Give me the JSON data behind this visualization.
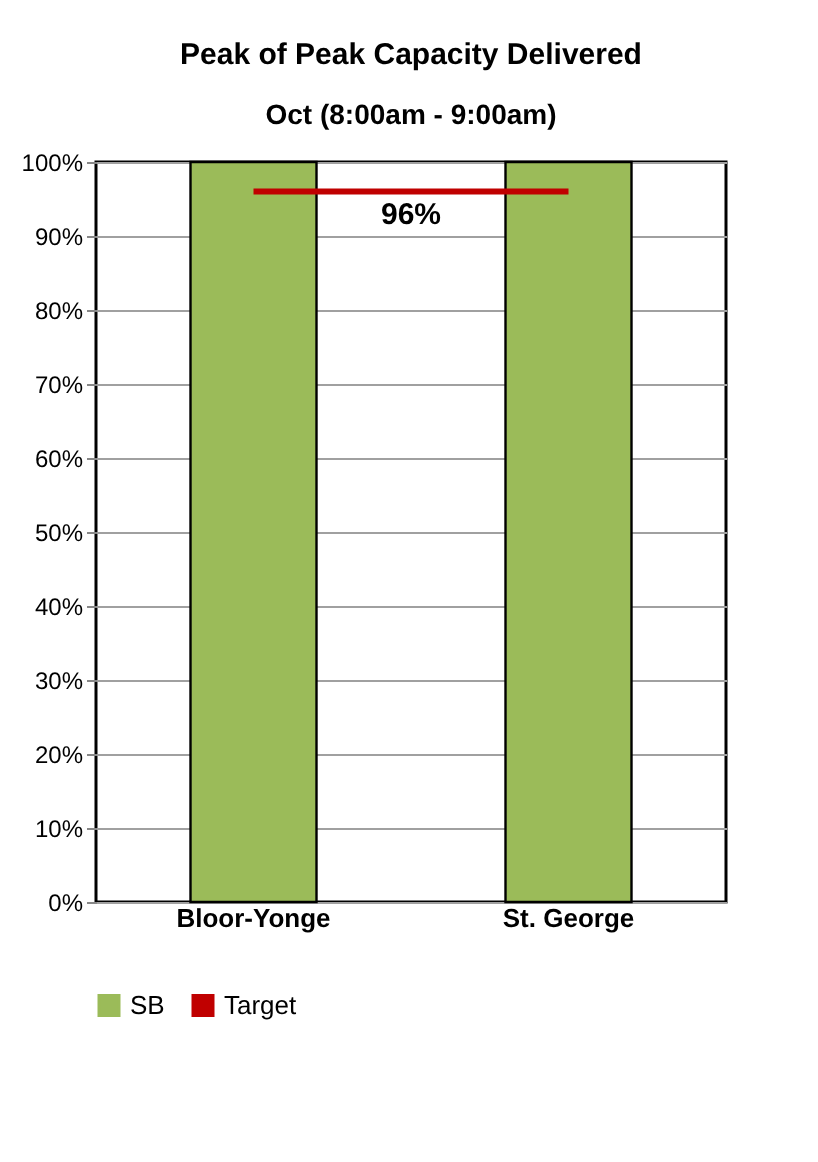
{
  "chart_data": {
    "type": "bar",
    "title": "Peak of Peak Capacity Delivered",
    "subtitle": "Oct  (8:00am - 9:00am)",
    "categories": [
      "Bloor-Yonge",
      "St. George"
    ],
    "series": [
      {
        "name": "SB",
        "color": "#9bbb59",
        "values": [
          100,
          100
        ]
      },
      {
        "name": "Target",
        "type": "line",
        "color": "#c00000",
        "values": [
          96,
          96
        ]
      }
    ],
    "annotations": [
      {
        "text": "96%",
        "y": 96
      }
    ],
    "ylim": [
      0,
      100
    ],
    "yticks": [
      {
        "value": 0,
        "label": "0%"
      },
      {
        "value": 10,
        "label": "10%"
      },
      {
        "value": 20,
        "label": "20%"
      },
      {
        "value": 30,
        "label": "30%"
      },
      {
        "value": 40,
        "label": "40%"
      },
      {
        "value": 50,
        "label": "50%"
      },
      {
        "value": 60,
        "label": "60%"
      },
      {
        "value": 70,
        "label": "70%"
      },
      {
        "value": 80,
        "label": "80%"
      },
      {
        "value": 90,
        "label": "90%"
      },
      {
        "value": 100,
        "label": "100%"
      }
    ],
    "grid": "y",
    "legend": "bottom"
  }
}
